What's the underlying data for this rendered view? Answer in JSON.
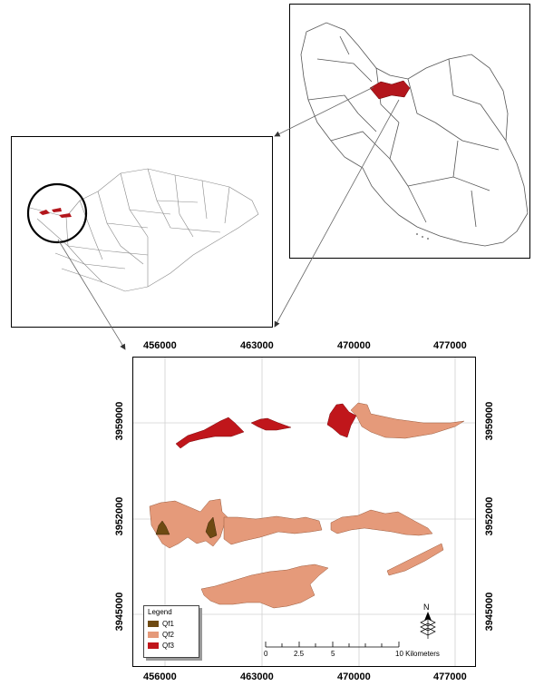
{
  "map": {
    "x_ticks": [
      "456000",
      "463000",
      "470000",
      "477000"
    ],
    "y_ticks": [
      "3959000",
      "3952000",
      "3945000"
    ],
    "legend": {
      "title": "Legend",
      "items": [
        {
          "label": "Qf1",
          "color": "#6e4a12"
        },
        {
          "label": "Qf2",
          "color": "#e59a7a"
        },
        {
          "label": "Qf3",
          "color": "#c0161b"
        }
      ]
    },
    "scalebar": {
      "labels": [
        "0",
        "2.5",
        "5",
        "10 Kilometers"
      ]
    },
    "north_label": "N",
    "colors": {
      "highlight": "#b3161c",
      "qf2_outline": "#9a5a3c",
      "grid": "#d0d0d0"
    }
  }
}
